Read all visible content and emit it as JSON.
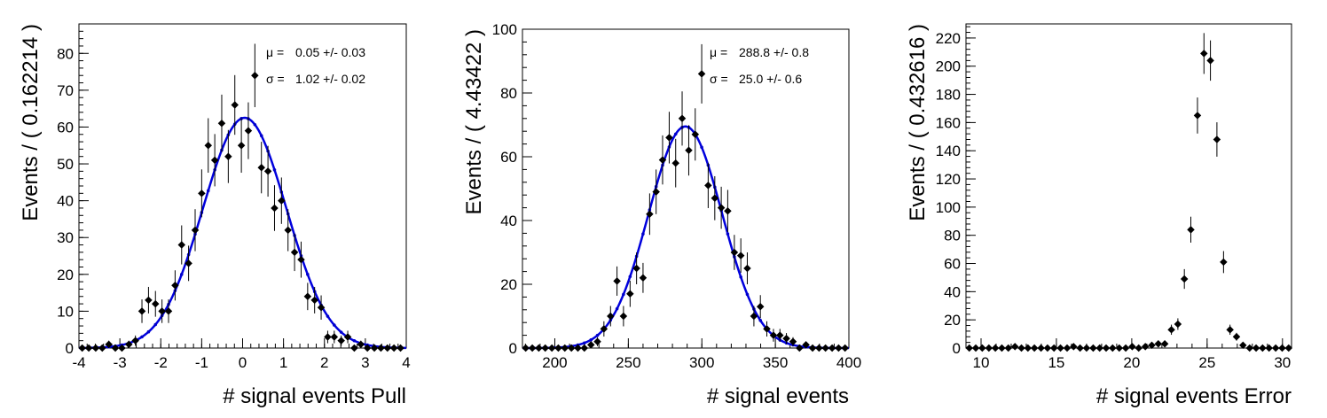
{
  "chart_data": [
    {
      "type": "scatter",
      "xlabel": "# signal events Pull",
      "ylabel": "Events / ( 0.162214 )",
      "xlim": [
        -4,
        4
      ],
      "ylim": [
        0,
        88
      ],
      "xticks": [
        -4,
        -3,
        -2,
        -1,
        0,
        1,
        2,
        3,
        4
      ],
      "yticks": [
        0,
        10,
        20,
        30,
        40,
        50,
        60,
        70,
        80
      ],
      "stats": [
        {
          "symbol": "μ =",
          "value": "0.05 +/- 0.03"
        },
        {
          "symbol": "σ =",
          "value": "1.02 +/- 0.02"
        }
      ],
      "fit": {
        "type": "gaussian",
        "mean": 0.05,
        "sigma": 1.02,
        "amplitude": 62.5,
        "color": "#0000dd"
      },
      "points_color": "#000000",
      "fit_points_color": "#0000cc",
      "x": [
        -3.92,
        -3.76,
        -3.59,
        -3.43,
        -3.27,
        -3.11,
        -2.95,
        -2.78,
        -2.62,
        -2.46,
        -2.3,
        -2.13,
        -1.97,
        -1.81,
        -1.65,
        -1.49,
        -1.32,
        -1.16,
        -1.0,
        -0.84,
        -0.68,
        -0.51,
        -0.35,
        -0.19,
        -0.03,
        0.14,
        0.3,
        0.46,
        0.62,
        0.78,
        0.95,
        1.11,
        1.27,
        1.43,
        1.59,
        1.76,
        1.92,
        2.08,
        2.24,
        2.41,
        2.57,
        2.73,
        2.89,
        3.05,
        3.22,
        3.38,
        3.54,
        3.7,
        3.86
      ],
      "y": [
        0,
        0,
        0,
        0,
        1,
        0,
        0,
        1,
        2,
        10,
        13,
        12,
        10,
        10,
        17,
        28,
        23,
        32,
        42,
        55,
        51,
        61,
        52,
        66,
        55,
        59,
        74,
        49,
        48,
        38,
        40,
        32,
        26,
        24,
        14,
        13,
        11,
        3,
        3,
        2,
        3,
        0,
        1,
        0,
        0,
        0,
        0,
        0,
        0
      ],
      "yerr": [
        0,
        0,
        0,
        0,
        1,
        0,
        0,
        1,
        1.4,
        3.2,
        3.6,
        3.5,
        3.2,
        3.2,
        4.1,
        5.3,
        4.8,
        5.7,
        6.5,
        7.4,
        7.1,
        7.8,
        7.2,
        8.1,
        7.4,
        7.7,
        8.6,
        7.0,
        6.9,
        6.2,
        6.3,
        5.7,
        5.1,
        4.9,
        3.7,
        3.6,
        3.3,
        1.7,
        1.7,
        1.4,
        1.7,
        0,
        1,
        0,
        0,
        0,
        0,
        0,
        0
      ]
    },
    {
      "type": "scatter",
      "xlabel": "# signal events",
      "ylabel": "Events / ( 4.43422 )",
      "xlim": [
        178,
        400
      ],
      "ylim": [
        0,
        100
      ],
      "xticks": [
        200,
        250,
        300,
        350,
        400
      ],
      "yticks": [
        0,
        20,
        40,
        60,
        80,
        100
      ],
      "stats": [
        {
          "symbol": "μ =",
          "value": "288.8 +/- 0.8"
        },
        {
          "symbol": "σ =",
          "value": "25.0 +/- 0.6"
        }
      ],
      "fit": {
        "type": "gaussian",
        "mean": 288.8,
        "sigma": 25.0,
        "amplitude": 69.5,
        "color": "#0000dd"
      },
      "points_color": "#000000",
      "fit_points_color": "#0000cc",
      "x": [
        180.2,
        184.7,
        189.1,
        193.5,
        198.0,
        202.4,
        206.8,
        211.3,
        215.7,
        220.1,
        224.6,
        229.0,
        233.4,
        237.9,
        242.3,
        246.7,
        251.2,
        255.6,
        260.0,
        264.5,
        268.9,
        273.3,
        277.8,
        282.2,
        286.6,
        291.1,
        295.5,
        299.9,
        304.3,
        308.8,
        313.2,
        317.6,
        322.1,
        326.5,
        330.9,
        335.4,
        339.8,
        344.2,
        348.7,
        353.1,
        357.5,
        362.0,
        366.4,
        370.8,
        375.3,
        379.7,
        384.1,
        388.6,
        393.0,
        397.4
      ],
      "y": [
        0,
        0,
        0,
        0,
        0,
        0,
        0,
        0,
        0,
        0,
        1,
        2,
        6,
        10,
        21,
        10,
        17,
        25,
        22,
        42,
        49,
        59,
        66,
        58,
        72,
        62,
        67,
        86,
        51,
        47,
        44,
        43,
        30,
        29,
        25,
        10,
        13,
        6,
        4,
        4,
        3,
        2,
        0,
        1,
        0,
        0,
        0,
        0,
        0,
        0
      ],
      "yerr": [
        0,
        0,
        0,
        0,
        0,
        0,
        0,
        0,
        0,
        0,
        1,
        1.4,
        2.4,
        3.2,
        4.6,
        3.2,
        4.1,
        5.0,
        4.7,
        6.5,
        7.0,
        7.7,
        8.1,
        7.6,
        8.5,
        7.9,
        8.2,
        9.3,
        7.1,
        6.9,
        6.6,
        6.6,
        5.5,
        5.4,
        5.0,
        3.2,
        3.6,
        2.4,
        2,
        2,
        1.7,
        1.4,
        0,
        1,
        0,
        0,
        0,
        0,
        0,
        0
      ]
    },
    {
      "type": "scatter",
      "xlabel": "# signal events Error",
      "ylabel": "Events / ( 0.432616 )",
      "xlim": [
        9,
        30.6
      ],
      "ylim": [
        0,
        230
      ],
      "xticks": [
        10,
        15,
        20,
        25,
        30
      ],
      "yticks": [
        0,
        20,
        40,
        60,
        80,
        100,
        120,
        140,
        160,
        180,
        200,
        220
      ],
      "stats": [],
      "points_color": "#000000",
      "x": [
        9.22,
        9.65,
        10.08,
        10.52,
        10.95,
        11.38,
        11.81,
        12.25,
        12.68,
        13.11,
        13.54,
        13.98,
        14.41,
        14.84,
        15.27,
        15.71,
        16.14,
        16.57,
        17.0,
        17.44,
        17.87,
        18.3,
        18.73,
        19.17,
        19.6,
        20.03,
        20.46,
        20.9,
        21.33,
        21.76,
        22.19,
        22.63,
        23.06,
        23.49,
        23.92,
        24.36,
        24.79,
        25.22,
        25.65,
        26.09,
        26.52,
        26.95,
        27.38,
        27.82,
        28.25,
        28.68,
        29.11,
        29.55,
        29.98,
        30.41
      ],
      "y": [
        0,
        0,
        0,
        0,
        0,
        0,
        0,
        1,
        0,
        0,
        0,
        0,
        0,
        0,
        0,
        0,
        1,
        0,
        0,
        0,
        0,
        0,
        0,
        0,
        0,
        1,
        0,
        1,
        2,
        3,
        3,
        13,
        17,
        49,
        84,
        165,
        209,
        204,
        148,
        61,
        13,
        8,
        2,
        0,
        0,
        0,
        0,
        0,
        0,
        0
      ],
      "yerr": [
        0,
        0,
        0,
        0,
        0,
        0,
        0,
        1,
        0,
        0,
        0,
        0,
        0,
        0,
        0,
        0,
        1,
        0,
        0,
        0,
        0,
        0,
        0,
        0,
        0,
        1,
        0,
        1,
        1.4,
        1.7,
        1.7,
        3.6,
        4.1,
        7.0,
        9.2,
        12.8,
        14.5,
        14.3,
        12.2,
        7.8,
        3.6,
        2.8,
        1.4,
        0,
        0,
        0,
        0,
        0,
        0,
        0
      ]
    }
  ]
}
